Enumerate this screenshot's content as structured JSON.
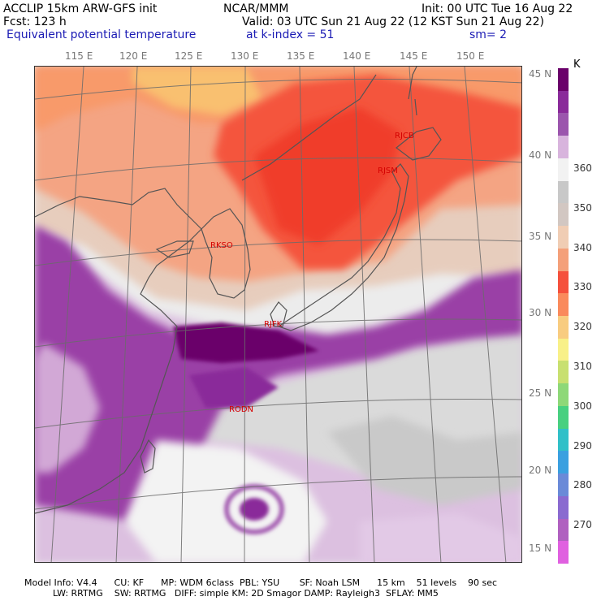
{
  "header": {
    "line1_left": "ACCLIP 15km ARW-GFS init",
    "line1_center": "NCAR/MMM",
    "line1_right": "Init: 00 UTC Tue 16 Aug 22",
    "line2_left": "Fcst:  123 h",
    "line2_right": "Valid: 03 UTC Sun 21 Aug 22 (12 KST Sun 21 Aug 22)",
    "line3_left": "Equivalent potential temperature",
    "line3_center": "at k-index =  51",
    "line3_right": "sm= 2"
  },
  "map": {
    "lon_labels": [
      "115 E",
      "120 E",
      "125 E",
      "130 E",
      "135 E",
      "140 E",
      "145 E",
      "150 E"
    ],
    "lat_labels": [
      "45 N",
      "40 N",
      "35 N",
      "30 N",
      "25 N",
      "20 N",
      "15 N"
    ],
    "stations": [
      "RJCB",
      "RJSM",
      "RKSO",
      "RJFK",
      "RODN"
    ]
  },
  "colorbar": {
    "unit": "K",
    "labels": [
      "360",
      "350",
      "340",
      "330",
      "320",
      "310",
      "300",
      "290",
      "280",
      "270"
    ],
    "colors": [
      "#6a006a",
      "#8a2a9a",
      "#9b55ad",
      "#d8b4dd",
      "#f2f2f2",
      "#c8c8c8",
      "#d2c7c2",
      "#f0cdb4",
      "#f4a07a",
      "#f5503c",
      "#fa8a5c",
      "#f8cc80",
      "#f8f088",
      "#c8e070",
      "#8ed878",
      "#48d080",
      "#30c0c8",
      "#3aa0e0",
      "#6a8ad8",
      "#8a6ad0",
      "#b060c0",
      "#e060e0"
    ]
  },
  "footer": {
    "line1": "Model Info: V4.4      CU: KF      MP: WDM 6class  PBL: YSU       SF: Noah LSM      15 km    51 levels    90 sec",
    "line2": "          LW: RRTMG    SW: RRTMG   DIFF: simple KM: 2D Smagor DAMP: Rayleigh3  SFLAY: MM5"
  }
}
